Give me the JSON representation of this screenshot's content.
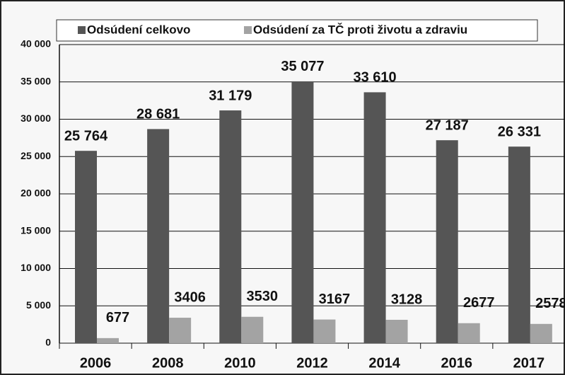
{
  "chart_data": {
    "type": "bar",
    "categories": [
      "2006",
      "2008",
      "2010",
      "2012",
      "2014",
      "2016",
      "2017"
    ],
    "series": [
      {
        "name": "Odsúdení celkovo",
        "color": "#555555",
        "values": [
          25764,
          28681,
          31179,
          35077,
          33610,
          27187,
          26331
        ],
        "value_labels": [
          "25 764",
          "28 681",
          "31 179",
          "35 077",
          "33 610",
          "27 187",
          "26 331"
        ]
      },
      {
        "name": "Odsúdení za TČ proti životu a zdraviu",
        "color": "#a3a3a3",
        "values": [
          677,
          3406,
          3530,
          3167,
          3128,
          2677,
          2578
        ]
      }
    ],
    "ylim": [
      0,
      40000
    ],
    "yticks": [
      {
        "value": 0,
        "label": "0"
      },
      {
        "value": 5000,
        "label": "5 000"
      },
      {
        "value": 10000,
        "label": "10 000"
      },
      {
        "value": 15000,
        "label": "15 000"
      },
      {
        "value": 20000,
        "label": "20 000"
      },
      {
        "value": 25000,
        "label": "25 000"
      },
      {
        "value": 30000,
        "label": "30 000"
      },
      {
        "value": 35000,
        "label": "35 000"
      },
      {
        "value": 40000,
        "label": "40 000"
      }
    ],
    "grid": true,
    "legend": "top"
  }
}
